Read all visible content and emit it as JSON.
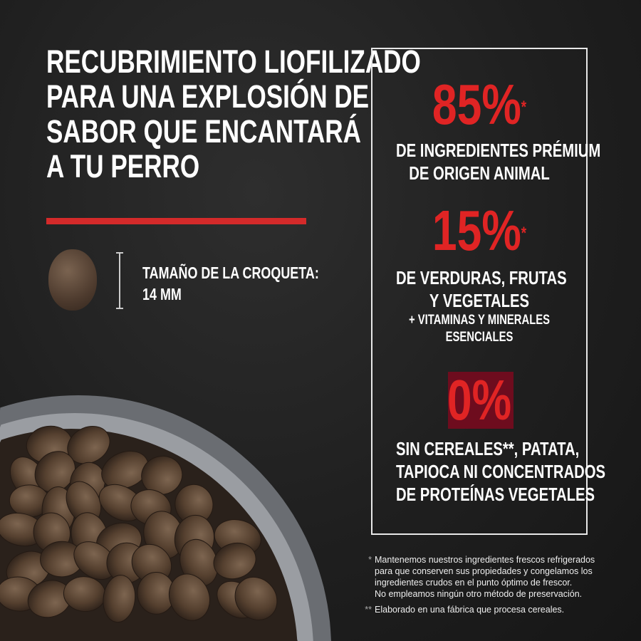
{
  "headline": [
    "RECUBRIMIENTO LIOFILIZADO",
    "PARA UNA EXPLOSIÓN DE",
    "SABOR QUE ENCANTARÁ",
    "A TU PERRO"
  ],
  "kibble_size": {
    "label": "TAMAÑO DE LA CROQUETA:",
    "value": "14 MM"
  },
  "stats": [
    {
      "value": "85%",
      "asterisk": "*",
      "lines": [
        "DE INGREDIENTES PRÉMIUM",
        "DE ORIGEN ANIMAL"
      ]
    },
    {
      "value": "15%",
      "asterisk": "*",
      "lines": [
        "DE VERDURAS, FRUTAS",
        "Y VEGETALES"
      ],
      "extra": [
        "+ VITAMINAS Y MINERALES",
        "ESENCIALES"
      ]
    },
    {
      "value": "0%",
      "lines": [
        "SIN CEREALES**, PATATA,",
        "TAPIOCA NI CONCENTRADOS",
        "DE PROTEÍNAS VEGETALES"
      ]
    }
  ],
  "footnotes": [
    {
      "mark": "*",
      "lines": [
        "Mantenemos nuestros ingredientes frescos refrigerados",
        "para que conserven sus propiedades y congelamos los",
        "ingredientes crudos en el punto óptimo de frescor.",
        "No empleamos ningún otro método de preservación."
      ]
    },
    {
      "mark": "**",
      "lines": [
        "Elaborado en una fábrica que procesa cereales."
      ]
    }
  ],
  "colors": {
    "accent": "#e02424",
    "background": "#1f1f1f",
    "kibble": "#5a4535"
  }
}
